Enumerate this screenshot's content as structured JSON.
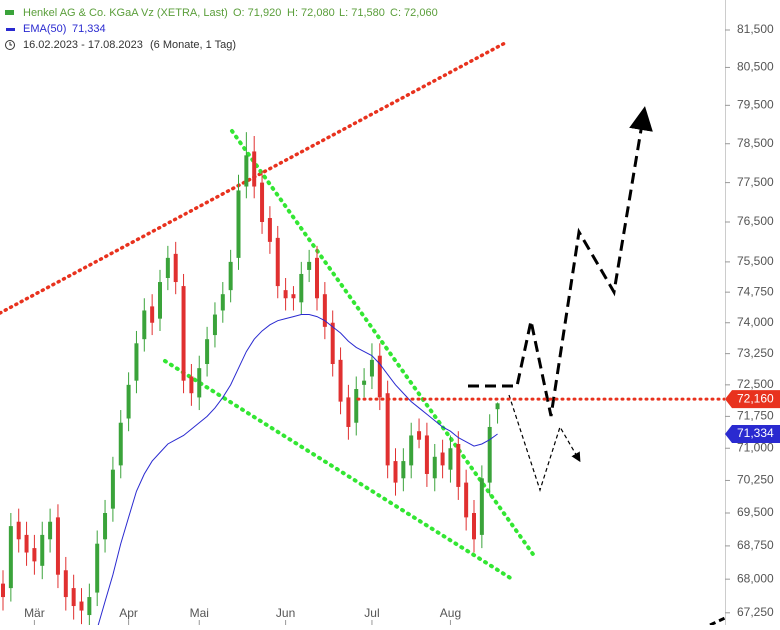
{
  "chart_data": {
    "type": "candlestick",
    "title": "Henkel AG & Co. KGaA Vz (XETRA, Last)",
    "quote": [
      "O: 71,920",
      "H: 72,080",
      "L: 71,580",
      "C: 72,060"
    ],
    "period": "16.02.2023 - 17.08.2023",
    "period_note": "(6 Monate, 1 Tag)",
    "log_scale": true,
    "grid": false,
    "ylim": [
      66.98,
      82.31
    ],
    "yticks": [
      {
        "value": 81.5,
        "label": "81,500"
      },
      {
        "value": 80.5,
        "label": "80,500"
      },
      {
        "value": 79.5,
        "label": "79,500"
      },
      {
        "value": 78.5,
        "label": "78,500"
      },
      {
        "value": 77.5,
        "label": "77,500"
      },
      {
        "value": 76.5,
        "label": "76,500"
      },
      {
        "value": 75.5,
        "label": "75,500"
      },
      {
        "value": 74.75,
        "label": "74,750"
      },
      {
        "value": 74,
        "label": "74,000"
      },
      {
        "value": 73.25,
        "label": "73,250"
      },
      {
        "value": 72.5,
        "label": "72,500"
      },
      {
        "value": 71.75,
        "label": "71,750"
      },
      {
        "value": 71,
        "label": "71,000"
      },
      {
        "value": 70.25,
        "label": "70,250"
      },
      {
        "value": 69.5,
        "label": "69,500"
      },
      {
        "value": 68.75,
        "label": "68,750"
      },
      {
        "value": 68,
        "label": "68,000"
      },
      {
        "value": 67.25,
        "label": "67,250"
      }
    ],
    "categories": [
      null,
      null,
      null,
      null,
      "Mär",
      null,
      null,
      null,
      null,
      null,
      null,
      null,
      null,
      null,
      null,
      null,
      "Apr",
      null,
      null,
      null,
      null,
      null,
      null,
      null,
      null,
      "Mai",
      null,
      null,
      null,
      null,
      null,
      null,
      null,
      null,
      null,
      null,
      "Jun",
      null,
      null,
      null,
      null,
      null,
      null,
      null,
      null,
      null,
      null,
      "Jul",
      null,
      null,
      null,
      null,
      null,
      null,
      null,
      null,
      null,
      "Aug",
      null,
      null,
      null,
      null,
      null,
      null
    ],
    "up_color": "#3aa33a",
    "down_color": "#e03030",
    "open": [
      67.9,
      67.8,
      69.3,
      69.0,
      68.7,
      68.3,
      68.9,
      69.4,
      68.2,
      67.8,
      67.5,
      67.2,
      67.7,
      68.9,
      69.6,
      70.6,
      71.7,
      72.6,
      73.6,
      74.4,
      74.1,
      75.1,
      75.7,
      74.9,
      72.7,
      72.2,
      73.0,
      73.7,
      74.3,
      74.8,
      75.6,
      77.4,
      78.3,
      77.5,
      76.6,
      76.1,
      74.8,
      74.7,
      74.5,
      75.3,
      75.6,
      74.7,
      74.0,
      73.1,
      72.2,
      71.6,
      72.5,
      72.7,
      73.2,
      72.3,
      70.7,
      70.3,
      70.6,
      71.4,
      71.3,
      70.3,
      70.9,
      70.5,
      71.1,
      70.2,
      69.5,
      69.0,
      70.2,
      71.92
    ],
    "high": [
      68.2,
      69.5,
      69.6,
      69.3,
      69.0,
      69.3,
      69.6,
      69.7,
      68.5,
      68.1,
      67.8,
      67.9,
      69.1,
      69.8,
      70.8,
      71.9,
      72.8,
      73.8,
      74.6,
      74.7,
      75.3,
      75.9,
      76.0,
      75.2,
      73.0,
      73.2,
      73.9,
      74.5,
      75.0,
      75.8,
      77.7,
      78.8,
      78.7,
      77.8,
      76.9,
      76.4,
      75.1,
      74.9,
      75.5,
      75.8,
      75.9,
      75.0,
      74.3,
      73.4,
      72.5,
      72.7,
      72.9,
      73.5,
      73.5,
      72.6,
      71.0,
      71.0,
      71.6,
      71.7,
      71.6,
      71.1,
      71.2,
      71.3,
      71.4,
      70.5,
      69.8,
      70.6,
      71.8,
      72.08
    ],
    "low": [
      67.3,
      67.5,
      68.6,
      68.3,
      68.1,
      68.0,
      68.6,
      67.8,
      67.3,
      67.1,
      67.0,
      66.9,
      67.4,
      68.6,
      69.3,
      70.3,
      71.4,
      72.3,
      73.3,
      73.7,
      73.8,
      74.8,
      74.7,
      72.3,
      72.0,
      71.9,
      72.7,
      73.4,
      74.0,
      74.5,
      75.3,
      77.1,
      77.1,
      76.2,
      75.7,
      74.6,
      74.3,
      74.3,
      74.2,
      75.0,
      74.3,
      73.6,
      72.7,
      71.8,
      71.2,
      71.3,
      72.2,
      72.4,
      71.9,
      70.3,
      69.9,
      70.0,
      70.3,
      71.0,
      70.1,
      70.0,
      70.3,
      70.2,
      69.8,
      69.1,
      68.6,
      68.7,
      69.9,
      71.58
    ],
    "close": [
      67.6,
      69.2,
      68.9,
      68.6,
      68.4,
      69.0,
      69.3,
      68.1,
      67.6,
      67.4,
      67.3,
      67.6,
      68.8,
      69.5,
      70.5,
      71.6,
      72.5,
      73.5,
      74.3,
      74.0,
      75.0,
      75.6,
      75.0,
      72.6,
      72.3,
      72.9,
      73.6,
      74.2,
      74.7,
      75.5,
      77.3,
      78.2,
      77.4,
      76.5,
      76.0,
      74.9,
      74.6,
      74.6,
      75.2,
      75.5,
      74.6,
      73.9,
      73.0,
      72.1,
      71.5,
      72.4,
      72.6,
      73.1,
      72.2,
      70.6,
      70.2,
      70.7,
      71.3,
      71.2,
      70.4,
      70.8,
      70.6,
      71.0,
      70.1,
      69.4,
      68.9,
      70.3,
      71.5,
      72.06
    ],
    "ema": {
      "name": "EMA(50)",
      "color": "#2a2ad0",
      "values": [
        null,
        null,
        null,
        null,
        null,
        null,
        null,
        null,
        null,
        null,
        null,
        null,
        66.9,
        67.5,
        68.1,
        68.8,
        69.4,
        70.0,
        70.4,
        70.7,
        70.9,
        71.1,
        71.2,
        71.3,
        71.45,
        71.6,
        71.75,
        71.95,
        72.2,
        72.5,
        72.9,
        73.3,
        73.6,
        73.8,
        73.95,
        74.05,
        74.1,
        74.15,
        74.2,
        74.2,
        74.15,
        74.05,
        73.9,
        73.75,
        73.55,
        73.4,
        73.3,
        73.2,
        73.0,
        72.75,
        72.5,
        72.3,
        72.1,
        71.95,
        71.8,
        71.65,
        71.5,
        71.4,
        71.25,
        71.15,
        71.05,
        71.1,
        71.2,
        71.334
      ],
      "last": {
        "value": 71.334,
        "label": "71,334"
      }
    },
    "level": {
      "value": 72.16,
      "label": "72,160",
      "color": "#e8321e"
    }
  }
}
